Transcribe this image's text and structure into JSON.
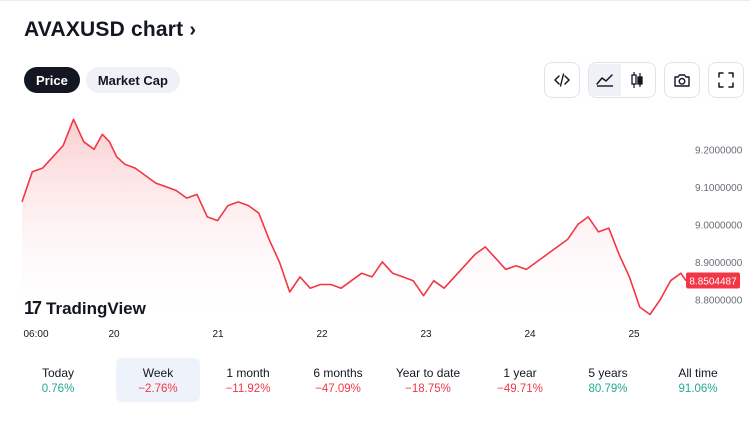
{
  "title": "AVAXUSD chart",
  "tabs": [
    {
      "label": "Price",
      "active": true
    },
    {
      "label": "Market Cap",
      "active": false
    }
  ],
  "toolbar": {
    "icons": [
      "embed-code-icon",
      "area-chart-icon",
      "candlestick-chart-icon",
      "camera-icon",
      "fullscreen-icon"
    ]
  },
  "branding": {
    "logo_text": "TradingView"
  },
  "chart_data": {
    "type": "area",
    "symbol": "AVAXUSD",
    "x_ticks": [
      "06:00",
      "20",
      "21",
      "22",
      "23",
      "24",
      "25"
    ],
    "y_ticks": [
      "9.2000000",
      "9.1000000",
      "9.0000000",
      "8.9000000",
      "8.8000000"
    ],
    "ylim": [
      8.74,
      9.31
    ],
    "last_price": "8.8504487",
    "colors": {
      "line": "#f23645",
      "fill_top": "#f9c8cc",
      "fill_bottom": "#ffffff",
      "price_tag": "#f23645"
    },
    "x_values": [
      0.0,
      0.1,
      0.2,
      0.3,
      0.4,
      0.5,
      0.6,
      0.7,
      0.78,
      0.85,
      0.92,
      1.0,
      1.1,
      1.2,
      1.3,
      1.4,
      1.5,
      1.6,
      1.7,
      1.8,
      1.9,
      2.0,
      2.1,
      2.2,
      2.3,
      2.4,
      2.5,
      2.6,
      2.7,
      2.8,
      2.9,
      3.0,
      3.1,
      3.2,
      3.3,
      3.4,
      3.5,
      3.6,
      3.7,
      3.8,
      3.9,
      4.0,
      4.1,
      4.2,
      4.3,
      4.4,
      4.5,
      4.6,
      4.7,
      4.8,
      4.9,
      5.0,
      5.1,
      5.2,
      5.3,
      5.4,
      5.5,
      5.6,
      5.7,
      5.8,
      5.9,
      6.0,
      6.1,
      6.2,
      6.3,
      6.4,
      6.45
    ],
    "y_values": [
      9.06,
      9.14,
      9.15,
      9.18,
      9.21,
      9.28,
      9.22,
      9.2,
      9.24,
      9.22,
      9.18,
      9.16,
      9.15,
      9.13,
      9.11,
      9.1,
      9.09,
      9.07,
      9.08,
      9.02,
      9.01,
      9.05,
      9.06,
      9.05,
      9.03,
      8.96,
      8.9,
      8.82,
      8.86,
      8.83,
      8.84,
      8.84,
      8.83,
      8.85,
      8.87,
      8.86,
      8.9,
      8.87,
      8.86,
      8.85,
      8.81,
      8.85,
      8.83,
      8.86,
      8.89,
      8.92,
      8.94,
      8.91,
      8.88,
      8.89,
      8.88,
      8.9,
      8.92,
      8.94,
      8.96,
      9.0,
      9.02,
      8.98,
      8.99,
      8.92,
      8.86,
      8.78,
      8.76,
      8.8,
      8.85,
      8.87,
      8.85
    ]
  },
  "periods": [
    {
      "label": "Today",
      "value": "0.76%",
      "trend": "pos",
      "selected": false
    },
    {
      "label": "Week",
      "value": "−2.76%",
      "trend": "neg",
      "selected": true
    },
    {
      "label": "1 month",
      "value": "−11.92%",
      "trend": "neg",
      "selected": false
    },
    {
      "label": "6 months",
      "value": "−47.09%",
      "trend": "neg",
      "selected": false
    },
    {
      "label": "Year to date",
      "value": "−18.75%",
      "trend": "neg",
      "selected": false
    },
    {
      "label": "1 year",
      "value": "−49.71%",
      "trend": "neg",
      "selected": false
    },
    {
      "label": "5 years",
      "value": "80.79%",
      "trend": "pos",
      "selected": false
    },
    {
      "label": "All time",
      "value": "91.06%",
      "trend": "pos",
      "selected": false
    }
  ]
}
